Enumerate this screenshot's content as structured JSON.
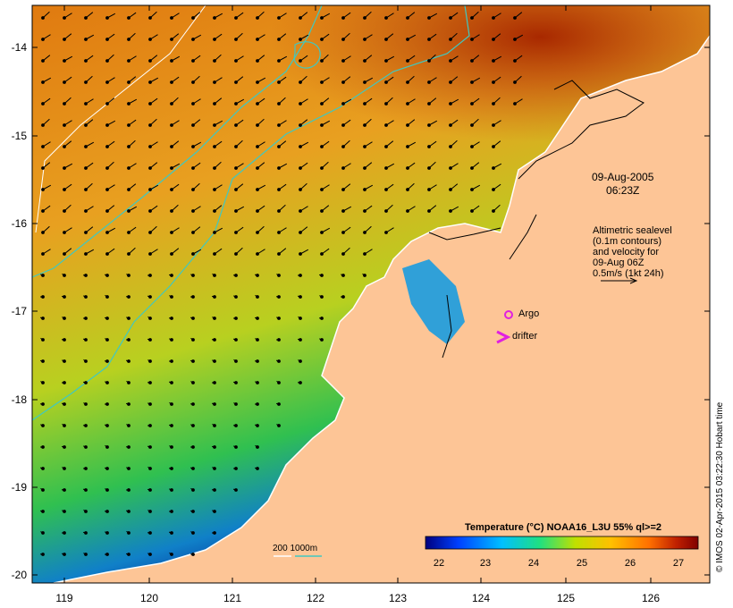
{
  "map": {
    "date_line1": "09-Aug-2005",
    "date_line2": "06:23Z",
    "altimetry_lines": [
      "Altimetric sealevel",
      "(0.1m contours)",
      "and velocity for",
      "09-Aug 06Z",
      "0.5m/s (1kt 24h)"
    ],
    "argo_label": "Argo",
    "drifter_label": "drifter",
    "depth_label": "200  1000m",
    "y_ticks": [
      "-14",
      "-15",
      "-16",
      "-17",
      "-18",
      "-19",
      "-20"
    ],
    "x_ticks": [
      "119",
      "120",
      "121",
      "122",
      "123",
      "124",
      "125",
      "126"
    ],
    "colors": {
      "land": "#fdc596",
      "argo": "#e020e0",
      "contour": "#40c8c0"
    }
  },
  "legend": {
    "title": "Temperature (°C) NOAA16_L3U 55% ql>=2",
    "ticks": [
      "22",
      "23",
      "24",
      "25",
      "26",
      "27"
    ],
    "colors": [
      "#00007f",
      "#0040ff",
      "#00c0ff",
      "#20e080",
      "#c0e000",
      "#ffc000",
      "#ff7000",
      "#c02000",
      "#800000"
    ]
  },
  "credit": "© IMOS 02-Apr-2015 03:22:30 Hobart time"
}
